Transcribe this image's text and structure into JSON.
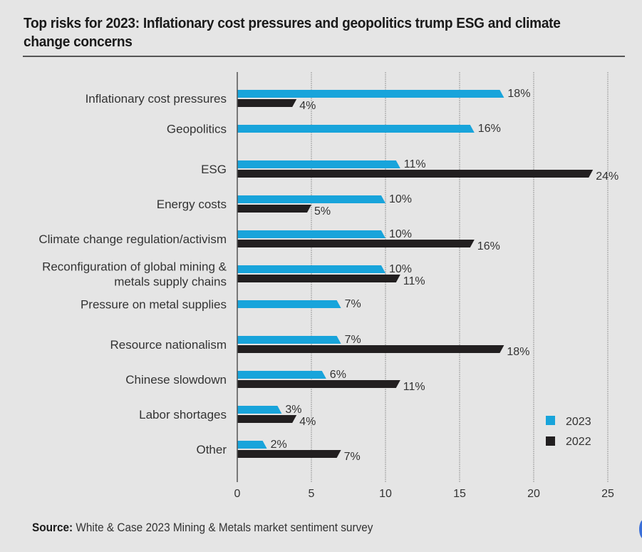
{
  "title": "Top risks for 2023: Inflationary cost pressures and geopolitics trump ESG and climate change concerns",
  "source": {
    "label": "Source:",
    "text": "White & Case 2023 Mining & Metals market sentiment survey"
  },
  "colors": {
    "series_2023": "#18a4db",
    "series_2022": "#221f20",
    "gridline": "#999999",
    "axis": "#555555",
    "background": "#e5e5e5"
  },
  "chart_data": {
    "type": "bar",
    "orientation": "horizontal",
    "title": "Top risks for 2023: Inflationary cost pressures and geopolitics trump ESG and climate change concerns",
    "xlabel": "",
    "ylabel": "",
    "xlim": [
      0,
      25
    ],
    "xticks": [
      0,
      5,
      10,
      15,
      20,
      25
    ],
    "grid": true,
    "legend_position": "bottom-right",
    "categories": [
      [
        "Inflationary cost pressures"
      ],
      [
        "Geopolitics"
      ],
      [
        "ESG"
      ],
      [
        "Energy costs"
      ],
      [
        "Climate change regulation/activism"
      ],
      [
        "Reconfiguration of global mining &",
        "metals supply chains"
      ],
      [
        "Pressure on metal supplies"
      ],
      [
        "Resource nationalism"
      ],
      [
        "Chinese slowdown"
      ],
      [
        "Labor shortages"
      ],
      [
        "Other"
      ]
    ],
    "series": [
      {
        "name": "2023",
        "color": "#18a4db",
        "values": [
          18,
          16,
          11,
          10,
          10,
          10,
          7,
          7,
          6,
          3,
          2
        ],
        "labels": [
          "18%",
          "16%",
          "11%",
          "10%",
          "10%",
          "10%",
          "7%",
          "7%",
          "6%",
          "3%",
          "2%"
        ]
      },
      {
        "name": "2022",
        "color": "#221f20",
        "values": [
          4,
          null,
          24,
          5,
          16,
          11,
          null,
          18,
          11,
          4,
          7
        ],
        "labels": [
          "4%",
          null,
          "24%",
          "5%",
          "16%",
          "11%",
          null,
          "18%",
          "11%",
          "4%",
          "7%"
        ]
      }
    ]
  }
}
